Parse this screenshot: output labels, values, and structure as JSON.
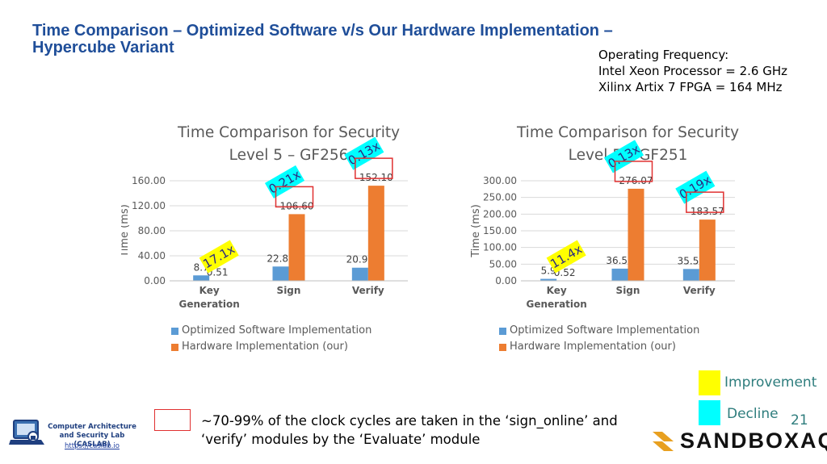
{
  "slide": {
    "title": "Time Comparison – Optimized Software v/s Our Hardware Implementation – Hypercube Variant",
    "freq_lines": [
      "Operating Frequency:",
      "Intel Xeon Processor = 2.6 GHz",
      "Xilinx Artix 7 FPGA =  164 MHz"
    ],
    "note": "~70-99% of the clock cycles are taken in the ‘sign_online’ and ‘verify’ modules by the ‘Evaluate’ module",
    "page_number": "21",
    "key": {
      "improvement_label": "Improvement",
      "decline_label": "Decline",
      "improvement_color": "#ffff00",
      "decline_color": "#00ffff"
    },
    "brand": {
      "name": "SANDBOXAQ",
      "icon": "sandboxaq-logo-icon"
    },
    "lab": {
      "name_line1": "Computer Architecture",
      "name_line2": "and Security Lab (CASLAB)",
      "url": "https://caslab.io",
      "icon": "caslab-laptop-logo-icon"
    }
  },
  "chart_data": [
    {
      "type": "bar",
      "title_line1": "Time Comparison for Security",
      "title_line2": "Level 5 – GF256",
      "ylabel": "Time (ms)",
      "ylim": [
        0,
        160
      ],
      "yticks": [
        "0.00",
        "40.00",
        "80.00",
        "120.00",
        "160.00"
      ],
      "categories": [
        [
          "Key",
          "Generation"
        ],
        [
          "Sign"
        ],
        [
          "Verify"
        ]
      ],
      "series": [
        {
          "name": "Optimized Software Implementation",
          "color": "#5b9bd5",
          "values": [
            8.7,
            22.86,
            20.98
          ],
          "labels": [
            "8.7",
            "22.86",
            "20.98"
          ]
        },
        {
          "name": "Hardware Implementation (our)",
          "color": "#ed7d31",
          "values": [
            0.51,
            106.6,
            152.1
          ],
          "labels": [
            "0.51",
            "106.60",
            "152.10"
          ]
        }
      ],
      "badges": [
        {
          "text": "17.1x",
          "type": "improvement",
          "category": 0
        },
        {
          "text": "0.21x",
          "type": "decline",
          "category": 1
        },
        {
          "text": "0.13x",
          "type": "decline",
          "category": 2
        }
      ],
      "grid": true,
      "legend": "bottom"
    },
    {
      "type": "bar",
      "title_line1": "Time Comparison for Security",
      "title_line2": "Level 5 – GF251",
      "ylabel": "Time (ms)",
      "ylim": [
        0,
        300
      ],
      "yticks": [
        "0.00",
        "50.00",
        "100.00",
        "150.00",
        "200.00",
        "250.00",
        "300.00"
      ],
      "categories": [
        [
          "Key",
          "Generation"
        ],
        [
          "Sign"
        ],
        [
          "Verify"
        ]
      ],
      "series": [
        {
          "name": "Optimized Software Implementation",
          "color": "#5b9bd5",
          "values": [
            5.9,
            36.56,
            35.53
          ],
          "labels": [
            "5.9",
            "36.56",
            "35.53"
          ]
        },
        {
          "name": "Hardware Implementation (our)",
          "color": "#ed7d31",
          "values": [
            0.52,
            276.07,
            183.57
          ],
          "labels": [
            "0.52",
            "276.07",
            "183.57"
          ]
        }
      ],
      "badges": [
        {
          "text": "11.4x",
          "type": "improvement",
          "category": 0
        },
        {
          "text": "0.13x",
          "type": "decline",
          "category": 1
        },
        {
          "text": "0.19x",
          "type": "decline",
          "category": 2
        }
      ],
      "grid": true,
      "legend": "bottom"
    }
  ]
}
